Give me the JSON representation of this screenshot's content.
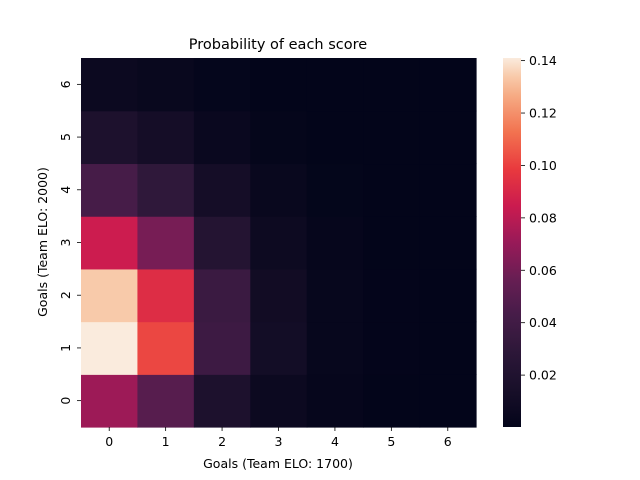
{
  "chart_data": {
    "type": "heatmap",
    "title": "Probability of each score",
    "xlabel": "Goals (Team ELO: 1700)",
    "ylabel": "Goals (Team ELO: 2000)",
    "x_categories": [
      "0",
      "1",
      "2",
      "3",
      "4",
      "5",
      "6"
    ],
    "y_categories": [
      "0",
      "1",
      "2",
      "3",
      "4",
      "5",
      "6"
    ],
    "values": [
      [
        0.072,
        0.05,
        0.018,
        0.006,
        0.002,
        0.0005,
        0.0001
      ],
      [
        0.141,
        0.102,
        0.038,
        0.011,
        0.003,
        0.0008,
        0.0002
      ],
      [
        0.134,
        0.093,
        0.036,
        0.01,
        0.003,
        0.0007,
        0.0002
      ],
      [
        0.085,
        0.061,
        0.023,
        0.007,
        0.002,
        0.0005,
        0.0001
      ],
      [
        0.043,
        0.03,
        0.012,
        0.004,
        0.001,
        0.0003,
        0.0001
      ],
      [
        0.018,
        0.012,
        0.005,
        0.0015,
        0.0004,
        0.0001,
        0.0
      ],
      [
        0.006,
        0.004,
        0.0018,
        0.0005,
        0.0001,
        0.0,
        0.0
      ]
    ],
    "colorbar": {
      "colormap": "rocket",
      "vmin": 0.0002,
      "vmax": 0.141,
      "ticks": [
        0.02,
        0.04,
        0.06,
        0.08,
        0.1,
        0.12,
        0.14
      ],
      "tick_labels": [
        "0.02",
        "0.04",
        "0.06",
        "0.08",
        "0.10",
        "0.12",
        "0.14"
      ]
    },
    "grid": false
  }
}
